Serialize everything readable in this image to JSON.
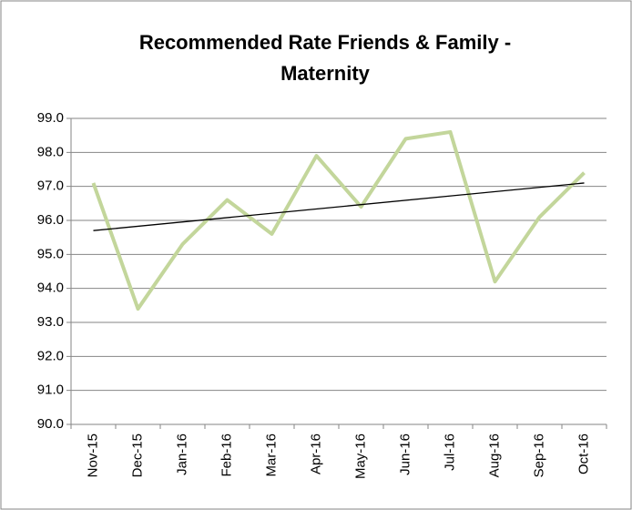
{
  "chart_data": {
    "type": "line",
    "title": [
      "Recommended Rate Friends & Family -",
      "Maternity"
    ],
    "categories": [
      "Nov-15",
      "Dec-15",
      "Jan-16",
      "Feb-16",
      "Mar-16",
      "Apr-16",
      "May-16",
      "Jun-16",
      "Jul-16",
      "Aug-16",
      "Sep-16",
      "Oct-16"
    ],
    "values": [
      97.1,
      93.4,
      95.3,
      96.6,
      95.6,
      97.9,
      96.4,
      98.4,
      98.6,
      94.2,
      96.1,
      97.4
    ],
    "color": "#c3d69b",
    "trendline": {
      "color": "#000000",
      "values": [
        95.7,
        97.1
      ]
    },
    "ylim": [
      90,
      99
    ],
    "yticks": [
      {
        "value": 90,
        "label": "90.0"
      },
      {
        "value": 91,
        "label": "91.0"
      },
      {
        "value": 92,
        "label": "92.0"
      },
      {
        "value": 93,
        "label": "93.0"
      },
      {
        "value": 94,
        "label": "94.0"
      },
      {
        "value": 95,
        "label": "95.0"
      },
      {
        "value": 96,
        "label": "96.0"
      },
      {
        "value": 97,
        "label": "97.0"
      },
      {
        "value": 98,
        "label": "98.0"
      },
      {
        "value": 99,
        "label": "99.0"
      }
    ],
    "grid": true
  }
}
